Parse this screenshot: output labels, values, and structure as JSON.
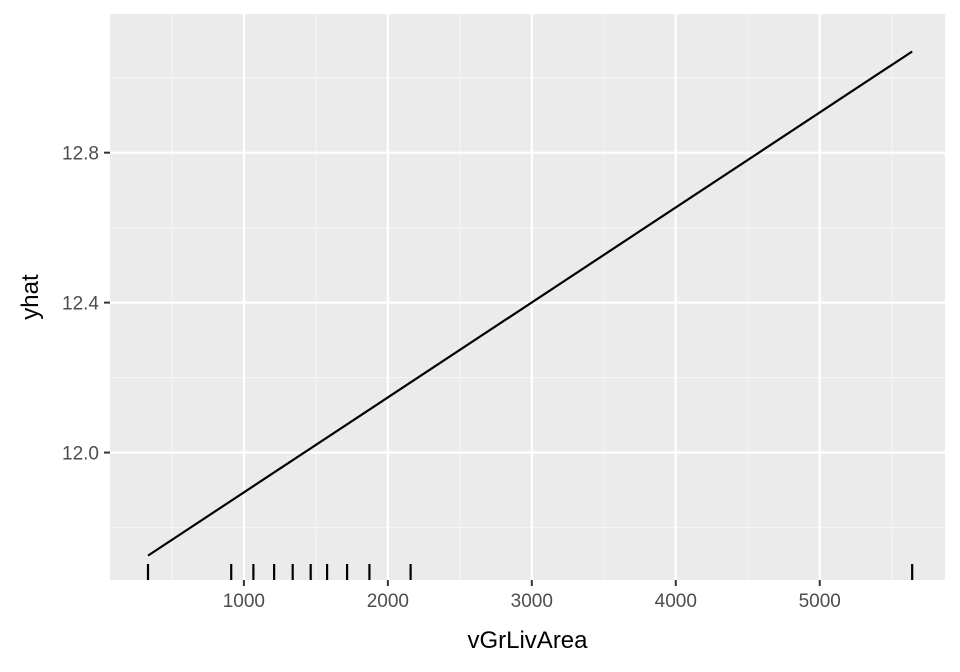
{
  "chart_data": {
    "type": "line",
    "title": "",
    "xlabel": "vGrLivArea",
    "ylabel": "yhat",
    "xlim": [
      70,
      5870
    ],
    "ylim": [
      11.66,
      13.17
    ],
    "x_ticks": [
      {
        "value": 1000,
        "label": "1000"
      },
      {
        "value": 2000,
        "label": "2000"
      },
      {
        "value": 3000,
        "label": "3000"
      },
      {
        "value": 4000,
        "label": "4000"
      },
      {
        "value": 5000,
        "label": "5000"
      }
    ],
    "y_ticks": [
      {
        "value": 12.0,
        "label": "12.0"
      },
      {
        "value": 12.4,
        "label": "12.4"
      },
      {
        "value": 12.8,
        "label": "12.8"
      }
    ],
    "x_minor_grid": [
      500,
      1500,
      2500,
      3500,
      4500,
      5500
    ],
    "y_minor_grid": [
      11.8,
      12.2,
      12.6,
      13.0
    ],
    "series": [
      {
        "x": [
          334,
          5642
        ],
        "y": [
          11.725,
          13.07
        ]
      }
    ],
    "rug_x": [
      334,
      912,
      1066,
      1210,
      1339,
      1464,
      1578,
      1717,
      1872,
      2158,
      5642
    ],
    "grid": true,
    "legend": "none",
    "colors": {
      "panel_background": "#ebebeb",
      "grid_major": "#ffffff",
      "grid_minor": "#f5f5f5",
      "line": "#000000",
      "rug": "#000000",
      "tick_label": "#4d4d4d",
      "axis_tick": "#333333"
    }
  }
}
